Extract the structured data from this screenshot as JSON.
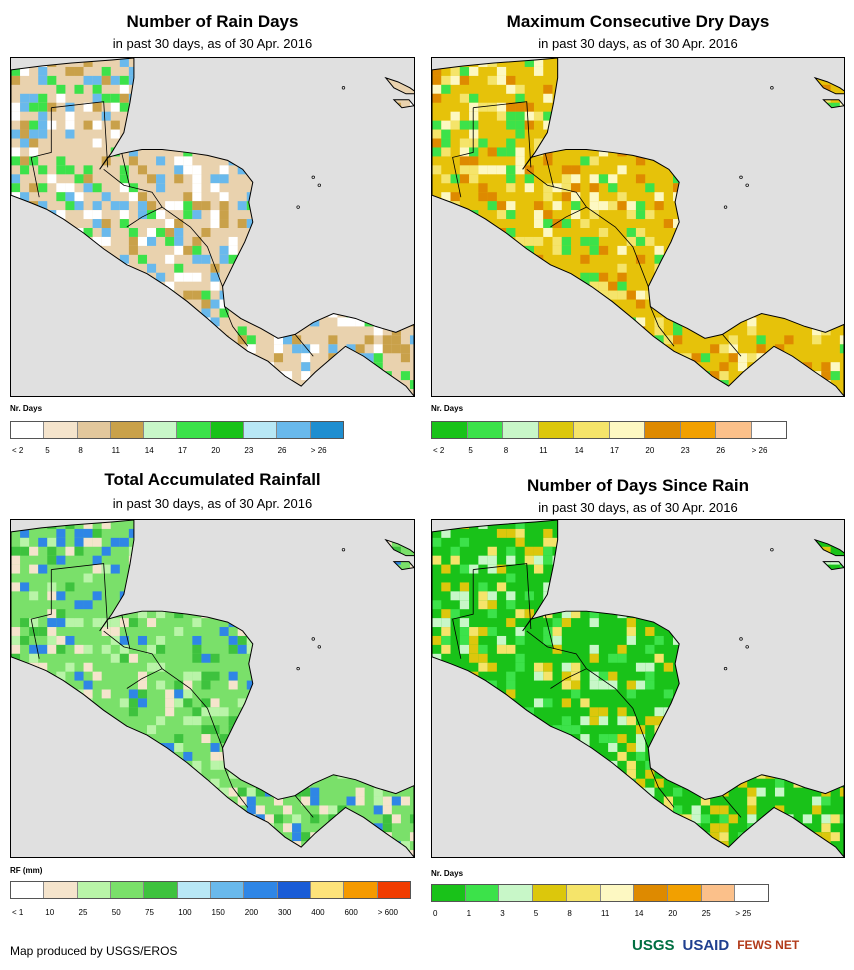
{
  "panels": [
    {
      "title": "Number of Rain Days",
      "subtitle": "in past 30 days, as of 30 Apr. 2016",
      "legend_title": "Nr. Days",
      "colors": [
        "#ffffff",
        "#f5e4cc",
        "#e2c79c",
        "#c9a14a",
        "#c8f7c8",
        "#3ce24a",
        "#19c219",
        "#b8e8f6",
        "#69b9ec",
        "#1e8ed0"
      ],
      "labels": [
        "< 2",
        "5",
        "8",
        "11",
        "14",
        "17",
        "20",
        "23",
        "26",
        "> 26"
      ],
      "land": "#e9d2ae",
      "accents": [
        "#ffffff",
        "#c9a14a",
        "#3ce24a",
        "#69b9ec"
      ]
    },
    {
      "title": "Maximum Consecutive Dry Days",
      "subtitle": "in past 30 days, as of 30 Apr. 2016",
      "legend_title": "Nr. Days",
      "colors": [
        "#19c219",
        "#3ce24a",
        "#c8f7c8",
        "#dcc70c",
        "#f5e46a",
        "#fdf8c2",
        "#de8a00",
        "#f2a000",
        "#fbc08a",
        "#ffffff"
      ],
      "labels": [
        "< 2",
        "5",
        "8",
        "11",
        "14",
        "17",
        "20",
        "23",
        "26",
        "> 26"
      ],
      "land": "#e6c20a",
      "accents": [
        "#de8a00",
        "#fdf8c2",
        "#f5e46a",
        "#3ce24a"
      ]
    },
    {
      "title": "Total Accumulated Rainfall",
      "subtitle": "in past 30 days, as of 30 Apr. 2016",
      "legend_title": "RF (mm)",
      "colors": [
        "#ffffff",
        "#f5e4cc",
        "#b9f4a8",
        "#7ae06a",
        "#3ec23e",
        "#b8e8f6",
        "#69b9ec",
        "#2f86e6",
        "#1a5cd6",
        "#fde37a",
        "#f59a00",
        "#f03c00"
      ],
      "labels": [
        "< 1",
        "10",
        "25",
        "50",
        "75",
        "100",
        "150",
        "200",
        "300",
        "400",
        "600",
        "> 600"
      ],
      "land": "#7ae06a",
      "accents": [
        "#b9f4a8",
        "#3ec23e",
        "#2f86e6",
        "#f5e4cc"
      ]
    },
    {
      "title": "Number of Days Since Rain",
      "subtitle": "in past 30 days, as of 30 Apr. 2016",
      "legend_title": "Nr. Days",
      "colors": [
        "#19c219",
        "#3ce24a",
        "#c8f7c8",
        "#dcc70c",
        "#f5e46a",
        "#fdf8c2",
        "#de8a00",
        "#f2a000",
        "#fbc08a",
        "#ffffff"
      ],
      "labels": [
        "0",
        "1",
        "3",
        "5",
        "8",
        "11",
        "14",
        "20",
        "25",
        "> 25"
      ],
      "land": "#19c219",
      "accents": [
        "#3ce24a",
        "#c8f7c8",
        "#f5e46a",
        "#dcc70c"
      ]
    }
  ],
  "footer": "Map produced by USGS/EROS",
  "logos": [
    "USGS",
    "USAID",
    "FEWS NET"
  ],
  "logo_colors": [
    "#006f41",
    "#1f3f8f",
    "#b23a1a"
  ]
}
